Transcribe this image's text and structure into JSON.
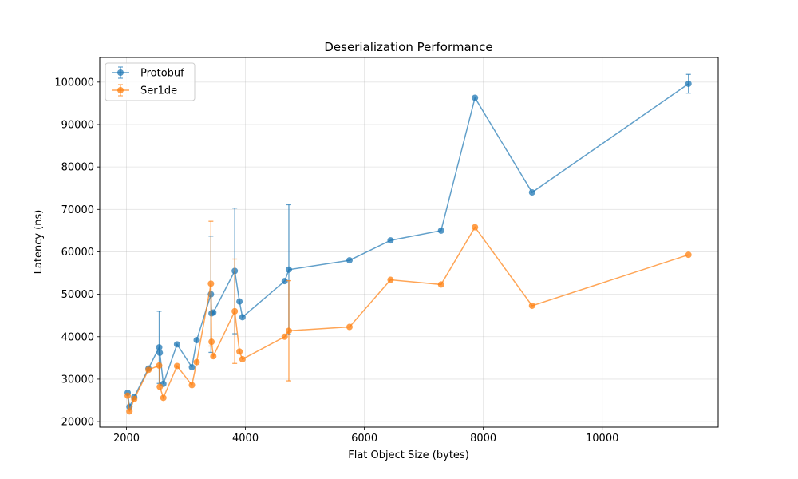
{
  "chart_data": {
    "type": "scatter",
    "title": "Deserialization Performance",
    "xlabel": "Flat Object Size (bytes)",
    "ylabel": "Latency (ns)",
    "xlim": [
      1550,
      11950
    ],
    "ylim": [
      18700,
      105800
    ],
    "xticks": [
      2000,
      4000,
      6000,
      8000,
      10000
    ],
    "yticks": [
      20000,
      30000,
      40000,
      50000,
      60000,
      70000,
      80000,
      90000,
      100000
    ],
    "grid": true,
    "legend_position": "top-left",
    "series": [
      {
        "name": "Protobuf",
        "color": "#1f77b4",
        "points": [
          {
            "x": 2020,
            "y": 26800,
            "err": 0
          },
          {
            "x": 2050,
            "y": 23500,
            "err": 0
          },
          {
            "x": 2130,
            "y": 25800,
            "err": 0
          },
          {
            "x": 2370,
            "y": 32500,
            "err": 0
          },
          {
            "x": 2550,
            "y": 37500,
            "err": 8500
          },
          {
            "x": 2560,
            "y": 36200,
            "err": 0
          },
          {
            "x": 2620,
            "y": 28900,
            "err": 0
          },
          {
            "x": 2850,
            "y": 38200,
            "err": 0
          },
          {
            "x": 3100,
            "y": 32800,
            "err": 0
          },
          {
            "x": 3180,
            "y": 39200,
            "err": 0
          },
          {
            "x": 3420,
            "y": 50000,
            "err": 13700
          },
          {
            "x": 3430,
            "y": 45500,
            "err": 0
          },
          {
            "x": 3460,
            "y": 45700,
            "err": 0
          },
          {
            "x": 3820,
            "y": 55500,
            "err": 14800
          },
          {
            "x": 3900,
            "y": 48300,
            "err": 0
          },
          {
            "x": 3950,
            "y": 44600,
            "err": 0
          },
          {
            "x": 4660,
            "y": 53100,
            "err": 0
          },
          {
            "x": 4730,
            "y": 55800,
            "err": 15300
          },
          {
            "x": 5750,
            "y": 58000,
            "err": 0
          },
          {
            "x": 6440,
            "y": 62700,
            "err": 0
          },
          {
            "x": 7290,
            "y": 65000,
            "err": 0
          },
          {
            "x": 7860,
            "y": 96300,
            "err": 0
          },
          {
            "x": 8820,
            "y": 74000,
            "err": 0
          },
          {
            "x": 11450,
            "y": 99600,
            "err": 2200
          }
        ]
      },
      {
        "name": "Ser1de",
        "color": "#ff7f0e",
        "points": [
          {
            "x": 2020,
            "y": 26100,
            "err": 0
          },
          {
            "x": 2050,
            "y": 22400,
            "err": 0
          },
          {
            "x": 2130,
            "y": 25300,
            "err": 0
          },
          {
            "x": 2370,
            "y": 32200,
            "err": 0
          },
          {
            "x": 2550,
            "y": 33200,
            "err": 0
          },
          {
            "x": 2560,
            "y": 28200,
            "err": 0
          },
          {
            "x": 2620,
            "y": 25600,
            "err": 0
          },
          {
            "x": 2850,
            "y": 33100,
            "err": 0
          },
          {
            "x": 3100,
            "y": 28600,
            "err": 0
          },
          {
            "x": 3180,
            "y": 34000,
            "err": 0
          },
          {
            "x": 3420,
            "y": 52500,
            "err": 14700
          },
          {
            "x": 3430,
            "y": 38800,
            "err": 0
          },
          {
            "x": 3460,
            "y": 35400,
            "err": 0
          },
          {
            "x": 3820,
            "y": 46000,
            "err": 12300
          },
          {
            "x": 3900,
            "y": 36500,
            "err": 0
          },
          {
            "x": 3950,
            "y": 34700,
            "err": 0
          },
          {
            "x": 4660,
            "y": 40000,
            "err": 0
          },
          {
            "x": 4730,
            "y": 41400,
            "err": 11800
          },
          {
            "x": 5750,
            "y": 42300,
            "err": 0
          },
          {
            "x": 6440,
            "y": 53400,
            "err": 0
          },
          {
            "x": 7290,
            "y": 52300,
            "err": 0
          },
          {
            "x": 7860,
            "y": 65800,
            "err": 0
          },
          {
            "x": 8820,
            "y": 47300,
            "err": 0
          },
          {
            "x": 11450,
            "y": 59300,
            "err": 0
          }
        ]
      }
    ]
  }
}
